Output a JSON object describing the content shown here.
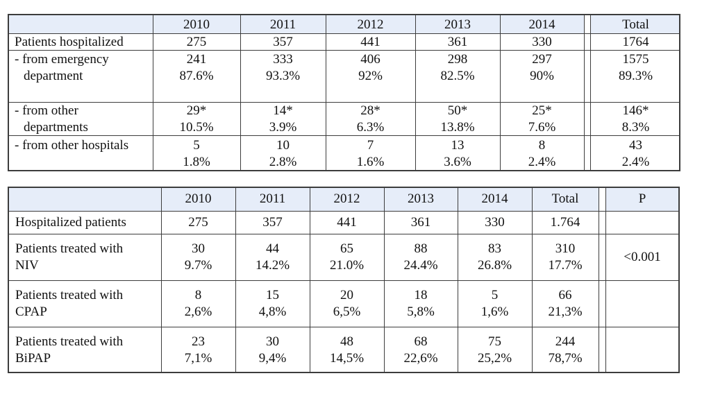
{
  "table1": {
    "header": [
      "2010",
      "2011",
      "2012",
      "2013",
      "2014",
      "Total"
    ],
    "rows": [
      {
        "label": [
          "Patients hospitalized"
        ],
        "cells": [
          [
            "275"
          ],
          [
            "357"
          ],
          [
            "441"
          ],
          [
            "361"
          ],
          [
            "330"
          ],
          [
            "1764"
          ]
        ]
      },
      {
        "label": [
          "- from emergency",
          "department"
        ],
        "cells": [
          [
            "241",
            "87.6%"
          ],
          [
            "333",
            "93.3%"
          ],
          [
            "406",
            "92%"
          ],
          [
            "298",
            "82.5%"
          ],
          [
            "297",
            "90%"
          ],
          [
            "1575",
            "89.3%"
          ]
        ]
      },
      {
        "label": [
          "- from other",
          "departments"
        ],
        "cells": [
          [
            "29*",
            "10.5%"
          ],
          [
            "14*",
            "3.9%"
          ],
          [
            "28*",
            "6.3%"
          ],
          [
            "50*",
            "13.8%"
          ],
          [
            "25*",
            "7.6%"
          ],
          [
            "146*",
            "8.3%"
          ]
        ]
      },
      {
        "label": [
          "- from other hospitals"
        ],
        "cells": [
          [
            "5",
            "1.8%"
          ],
          [
            "10",
            "2.8%"
          ],
          [
            "7",
            "1.6%"
          ],
          [
            "13",
            "3.6%"
          ],
          [
            "8",
            "2.4%"
          ],
          [
            "43",
            "2.4%"
          ]
        ]
      }
    ]
  },
  "table2": {
    "header": [
      "2010",
      "2011",
      "2012",
      "2013",
      "2014",
      "Total",
      "P"
    ],
    "rows": [
      {
        "label": [
          "Hospitalized patients"
        ],
        "cells": [
          [
            "275"
          ],
          [
            "357"
          ],
          [
            "441"
          ],
          [
            "361"
          ],
          [
            "330"
          ],
          [
            "1.764"
          ]
        ],
        "p": ""
      },
      {
        "label": [
          "Patients treated with",
          "NIV"
        ],
        "cells": [
          [
            "30",
            "9.7%"
          ],
          [
            "44",
            "14.2%"
          ],
          [
            "65",
            "21.0%"
          ],
          [
            "88",
            "24.4%"
          ],
          [
            "83",
            "26.8%"
          ],
          [
            "310",
            "17.7%"
          ]
        ],
        "p": "<0.001"
      },
      {
        "label": [
          "Patients treated with",
          "CPAP"
        ],
        "cells": [
          [
            "8",
            "2,6%"
          ],
          [
            "15",
            "4,8%"
          ],
          [
            "20",
            "6,5%"
          ],
          [
            "18",
            "5,8%"
          ],
          [
            "5",
            "1,6%"
          ],
          [
            "66",
            "21,3%"
          ]
        ],
        "p": ""
      },
      {
        "label": [
          "Patients treated with",
          "BiPAP"
        ],
        "cells": [
          [
            "23",
            "7,1%"
          ],
          [
            "30",
            "9,4%"
          ],
          [
            "48",
            "14,5%"
          ],
          [
            "68",
            "22,6%"
          ],
          [
            "75",
            "25,2%"
          ],
          [
            "244",
            "78,7%"
          ]
        ],
        "p": ""
      }
    ]
  }
}
